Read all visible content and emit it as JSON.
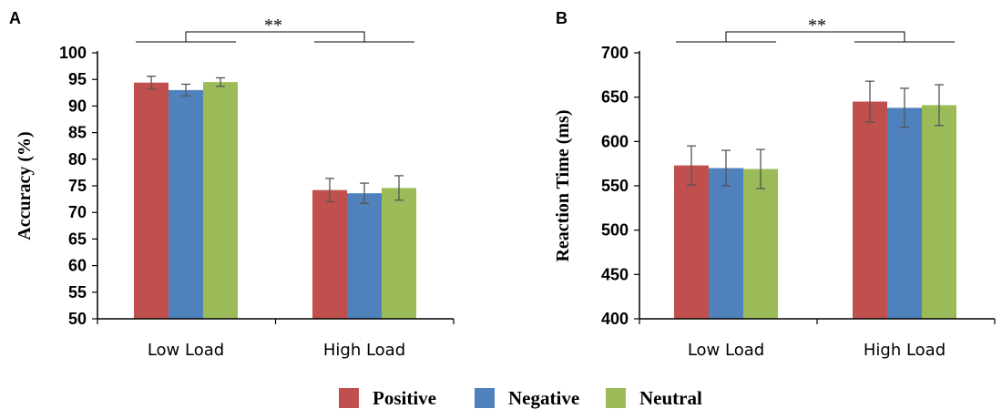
{
  "chart_data": [
    {
      "panel": "A",
      "type": "bar",
      "categories": [
        "Low Load",
        "High Load"
      ],
      "series": [
        {
          "name": "Positive",
          "values": [
            94.4,
            74.2
          ],
          "errors": [
            1.2,
            2.2
          ]
        },
        {
          "name": "Negative",
          "values": [
            93.0,
            73.6
          ],
          "errors": [
            1.1,
            1.9
          ]
        },
        {
          "name": "Neutral",
          "values": [
            94.5,
            74.6
          ],
          "errors": [
            0.8,
            2.3
          ]
        }
      ],
      "ylabel": "Accuracy (%)",
      "ylim": [
        50,
        100
      ],
      "yticks": [
        50,
        55,
        60,
        65,
        70,
        75,
        80,
        85,
        90,
        95,
        100
      ],
      "significance": "**"
    },
    {
      "panel": "B",
      "type": "bar",
      "categories": [
        "Low Load",
        "High Load"
      ],
      "series": [
        {
          "name": "Positive",
          "values": [
            573,
            645
          ],
          "errors": [
            22,
            23
          ]
        },
        {
          "name": "Negative",
          "values": [
            570,
            638
          ],
          "errors": [
            20,
            22
          ]
        },
        {
          "name": "Neutral",
          "values": [
            569,
            641
          ],
          "errors": [
            22,
            23
          ]
        }
      ],
      "ylabel": "Reaction Time (ms)",
      "ylim": [
        400,
        700
      ],
      "yticks": [
        400,
        450,
        500,
        550,
        600,
        650,
        700
      ],
      "significance": "**"
    }
  ],
  "legend": [
    {
      "name": "Positive",
      "color": "#c0504d"
    },
    {
      "name": "Negative",
      "color": "#4f81bd"
    },
    {
      "name": "Neutral",
      "color": "#9bbb59"
    }
  ]
}
